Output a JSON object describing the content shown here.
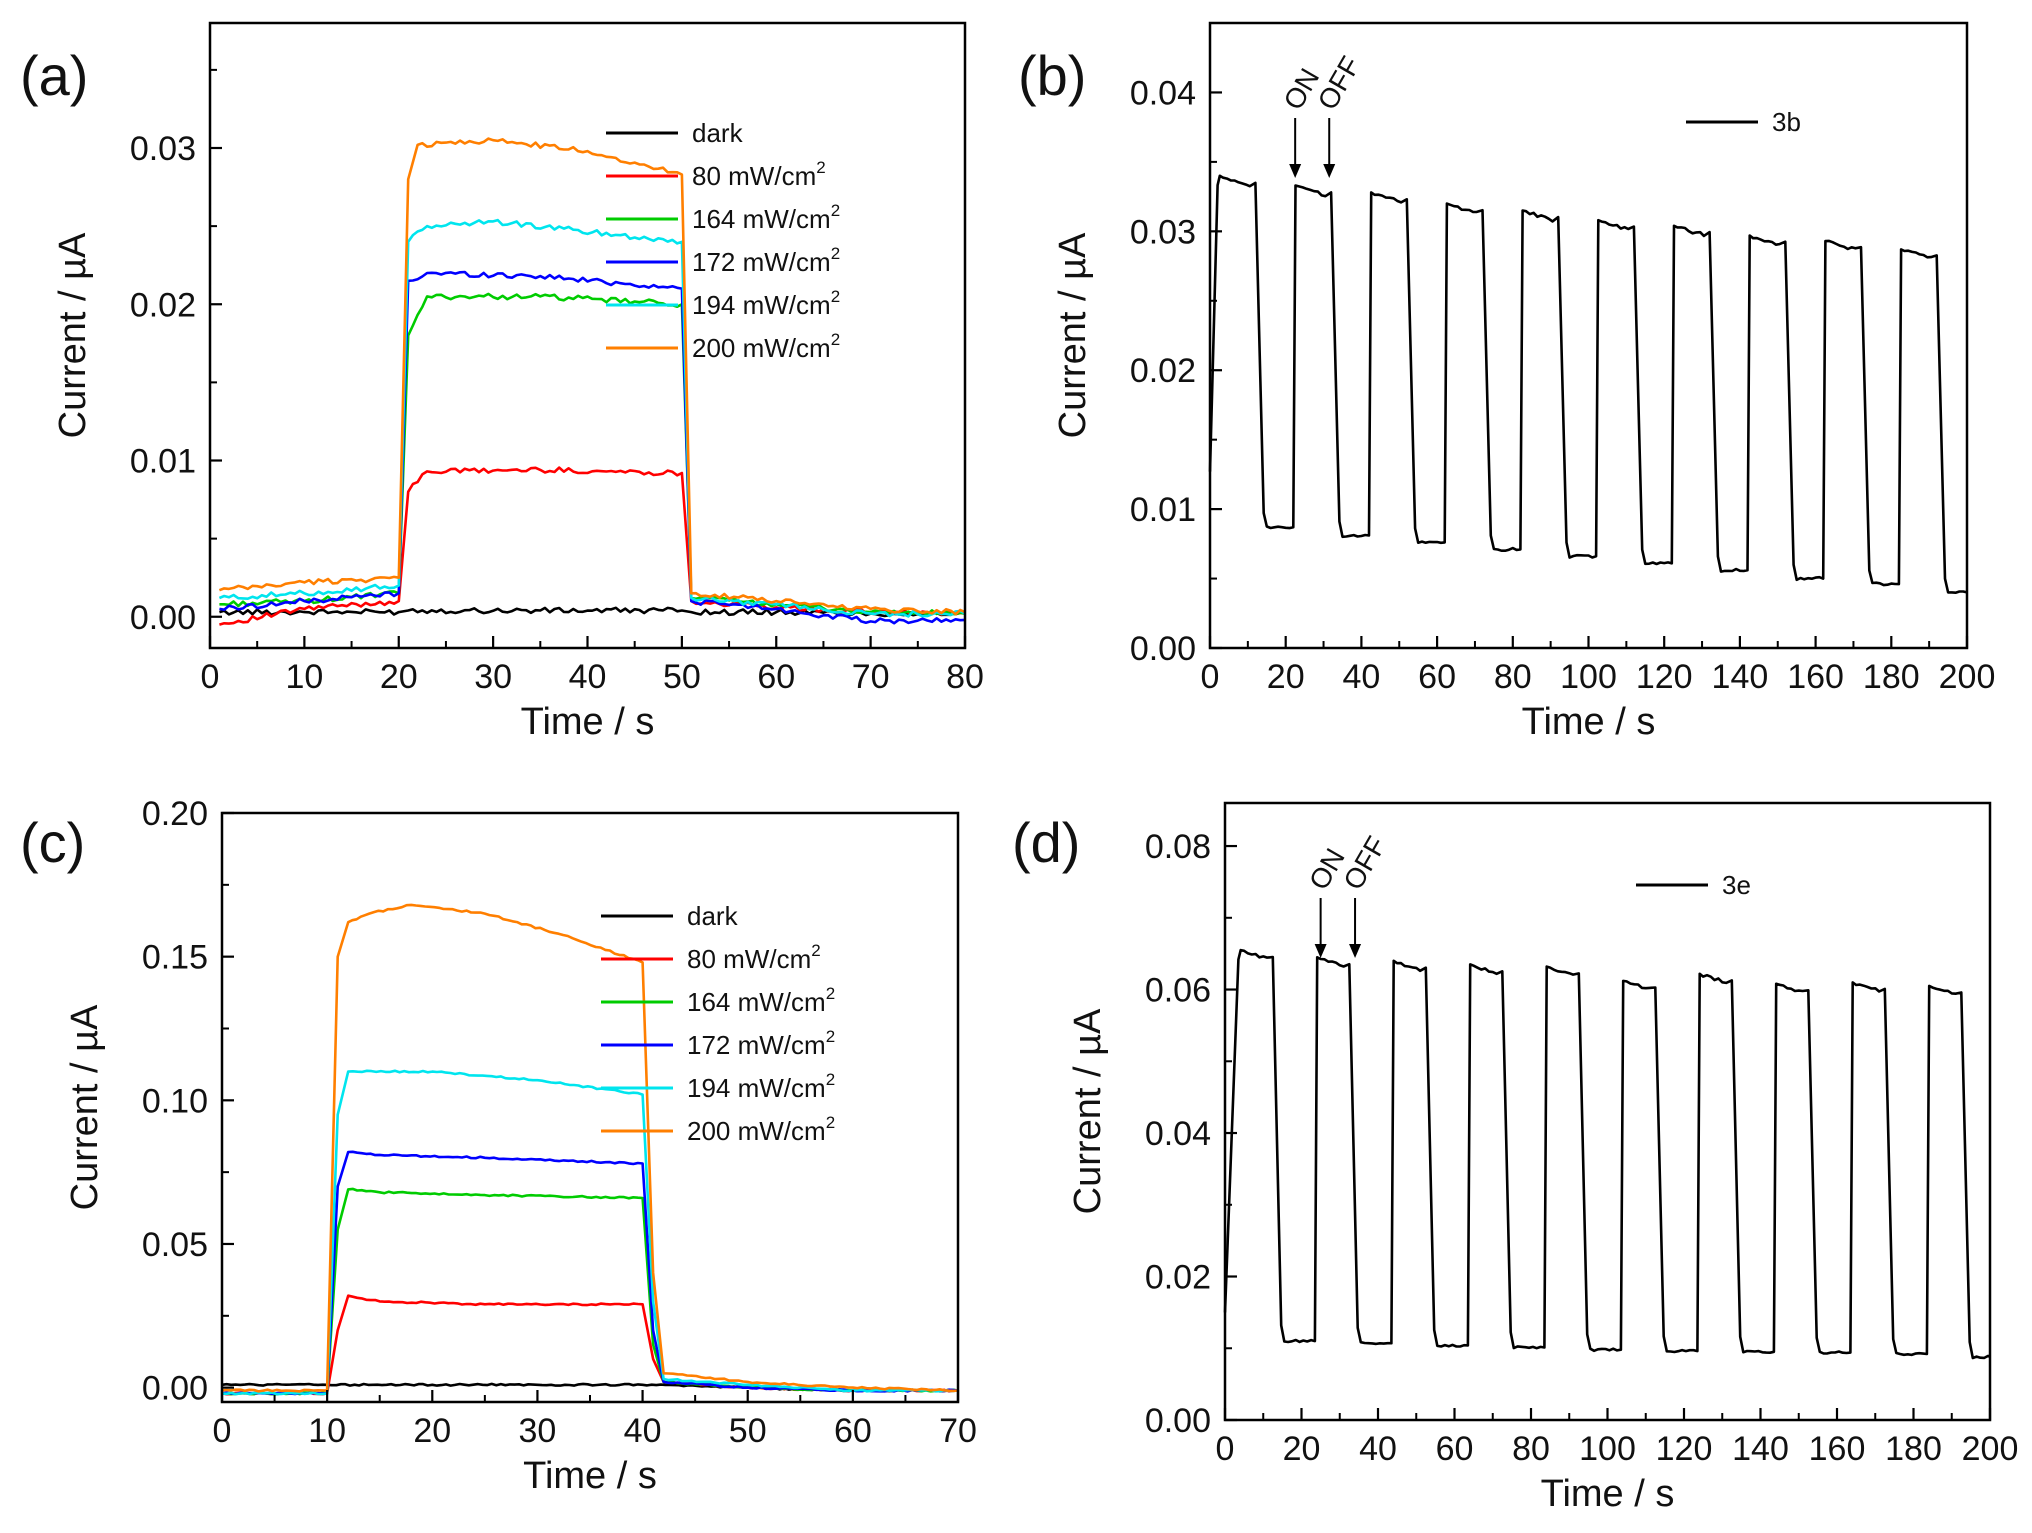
{
  "figure": {
    "panel_labels": [
      "(a)",
      "(b)",
      "(c)",
      "(d)"
    ]
  },
  "chart_data": [
    {
      "id": "a",
      "type": "line",
      "panel_label": "(a)",
      "xlabel": "Time / s",
      "ylabel": "Current / µA",
      "xlim": [
        0,
        80
      ],
      "ylim": [
        -0.002,
        0.038
      ],
      "xticks": [
        0,
        10,
        20,
        30,
        40,
        50,
        60,
        70,
        80
      ],
      "yticks": [
        0.0,
        0.01,
        0.02,
        0.03
      ],
      "ytick_labels": [
        "0.00",
        "0.01",
        "0.02",
        "0.03"
      ],
      "legend_position": "upper-right",
      "series": [
        {
          "name": "dark",
          "color": "#000000",
          "x": [
            1,
            10,
            20,
            21,
            35,
            50,
            51,
            60,
            70,
            80
          ],
          "values": [
            0.0003,
            0.0003,
            0.0003,
            0.0004,
            0.0004,
            0.0004,
            0.0003,
            0.0003,
            0.0002,
            0.0002
          ]
        },
        {
          "name": "80 mW/cm2",
          "color": "#ff0000",
          "x": [
            1,
            10,
            20,
            21,
            23,
            35,
            50,
            51,
            60,
            70,
            80
          ],
          "values": [
            -0.0005,
            0.0005,
            0.001,
            0.008,
            0.0093,
            0.0094,
            0.0092,
            0.001,
            0.0006,
            0.0003,
            0.0002
          ]
        },
        {
          "name": "164 mW/cm2",
          "color": "#00cc00",
          "x": [
            1,
            10,
            20,
            21,
            23,
            35,
            50,
            51,
            60,
            70,
            80
          ],
          "values": [
            0.0008,
            0.001,
            0.0015,
            0.018,
            0.0205,
            0.0205,
            0.02,
            0.0012,
            0.0008,
            0.0003,
            0.0002
          ]
        },
        {
          "name": "172 mW/cm2",
          "color": "#0000ff",
          "x": [
            1,
            10,
            20,
            21,
            23,
            35,
            50,
            51,
            60,
            70,
            80
          ],
          "values": [
            0.0005,
            0.001,
            0.0015,
            0.0215,
            0.022,
            0.0218,
            0.021,
            0.001,
            0.0005,
            -0.0003,
            -0.0002
          ]
        },
        {
          "name": "194 mW/cm2",
          "color": "#00e5ee",
          "x": [
            1,
            10,
            20,
            21,
            23,
            30,
            50,
            51,
            60,
            70,
            80
          ],
          "values": [
            0.0012,
            0.0015,
            0.002,
            0.024,
            0.025,
            0.0253,
            0.024,
            0.0012,
            0.0008,
            0.0002,
            0.0002
          ]
        },
        {
          "name": "200 mW/cm2",
          "color": "#ff7f00",
          "x": [
            1,
            10,
            20,
            21,
            22,
            30,
            40,
            50,
            51,
            60,
            70,
            80
          ],
          "values": [
            0.0017,
            0.0022,
            0.0025,
            0.028,
            0.0302,
            0.0305,
            0.0298,
            0.0283,
            0.0015,
            0.001,
            0.0005,
            0.0003
          ]
        }
      ]
    },
    {
      "id": "b",
      "type": "line",
      "panel_label": "(b)",
      "xlabel": "Time / s",
      "ylabel": "Current / µA",
      "xlim": [
        0,
        200
      ],
      "ylim": [
        0,
        0.045
      ],
      "xticks": [
        0,
        20,
        40,
        60,
        80,
        100,
        120,
        140,
        160,
        180,
        200
      ],
      "yticks": [
        0.0,
        0.01,
        0.02,
        0.03,
        0.04
      ],
      "ytick_labels": [
        "0.00",
        "0.01",
        "0.02",
        "0.03",
        "0.04"
      ],
      "legend_position": "top-right",
      "annotations": {
        "on": "ON",
        "off": "OFF",
        "on_x": 22.5,
        "off_x": 31.5
      },
      "square_wave": {
        "period": 20,
        "on_duration": 10,
        "first_on": 2,
        "cycles": 10,
        "end_x": 200
      },
      "series": [
        {
          "name": "3b",
          "color": "#000000",
          "cycle_on_values": [
            0.034,
            0.0333,
            0.0328,
            0.032,
            0.0315,
            0.0308,
            0.0304,
            0.0297,
            0.0293,
            0.0287
          ],
          "cycle_off_values": [
            0.0087,
            0.0081,
            0.0076,
            0.0071,
            0.0066,
            0.0061,
            0.0056,
            0.005,
            0.0046,
            0.004
          ]
        }
      ]
    },
    {
      "id": "c",
      "type": "line",
      "panel_label": "(c)",
      "xlabel": "Time / s",
      "ylabel": "Current / µA",
      "xlim": [
        0,
        70
      ],
      "ylim": [
        -0.005,
        0.2
      ],
      "xticks": [
        0,
        10,
        20,
        30,
        40,
        50,
        60,
        70
      ],
      "yticks": [
        0.0,
        0.05,
        0.1,
        0.15,
        0.2
      ],
      "ytick_labels": [
        "0.00",
        "0.05",
        "0.10",
        "0.15",
        "0.20"
      ],
      "legend_position": "upper-right",
      "series": [
        {
          "name": "dark",
          "color": "#000000",
          "x": [
            0,
            10,
            20,
            30,
            40,
            50,
            60,
            70
          ],
          "values": [
            0.001,
            0.001,
            0.001,
            0.001,
            0.001,
            0.0,
            -0.001,
            -0.001
          ]
        },
        {
          "name": "80 mW/cm2",
          "color": "#ff0000",
          "x": [
            0,
            10,
            11,
            12,
            15,
            25,
            40,
            41,
            42,
            50,
            60,
            70
          ],
          "values": [
            -0.002,
            -0.002,
            0.02,
            0.032,
            0.03,
            0.029,
            0.029,
            0.01,
            0.002,
            0.0,
            -0.001,
            -0.001
          ]
        },
        {
          "name": "164 mW/cm2",
          "color": "#00cc00",
          "x": [
            0,
            10,
            11,
            12,
            15,
            25,
            40,
            41,
            42,
            50,
            60,
            70
          ],
          "values": [
            -0.002,
            -0.002,
            0.055,
            0.069,
            0.068,
            0.067,
            0.066,
            0.015,
            0.002,
            0.0,
            -0.001,
            -0.001
          ]
        },
        {
          "name": "172 mW/cm2",
          "color": "#0000ff",
          "x": [
            0,
            10,
            11,
            12,
            15,
            25,
            40,
            41,
            42,
            50,
            60,
            70
          ],
          "values": [
            -0.002,
            -0.002,
            0.07,
            0.082,
            0.081,
            0.08,
            0.078,
            0.02,
            0.002,
            0.0,
            -0.001,
            -0.001
          ]
        },
        {
          "name": "194 mW/cm2",
          "color": "#00e5ee",
          "x": [
            0,
            10,
            11,
            12,
            20,
            30,
            40,
            41,
            42,
            50,
            60,
            70
          ],
          "values": [
            -0.002,
            -0.002,
            0.095,
            0.11,
            0.11,
            0.107,
            0.102,
            0.03,
            0.003,
            0.001,
            -0.001,
            -0.001
          ]
        },
        {
          "name": "200 mW/cm2",
          "color": "#ff7f00",
          "x": [
            0,
            10,
            11,
            12,
            14,
            18,
            25,
            32,
            40,
            41,
            42,
            50,
            60,
            70
          ],
          "values": [
            -0.001,
            -0.001,
            0.15,
            0.162,
            0.165,
            0.168,
            0.165,
            0.158,
            0.148,
            0.04,
            0.005,
            0.002,
            0.0,
            -0.001
          ]
        }
      ]
    },
    {
      "id": "d",
      "type": "line",
      "panel_label": "(d)",
      "xlabel": "Time / s",
      "ylabel": "Current / µA",
      "xlim": [
        0,
        200
      ],
      "ylim": [
        0,
        0.086
      ],
      "xticks": [
        0,
        20,
        40,
        60,
        80,
        100,
        120,
        140,
        160,
        180,
        200
      ],
      "yticks": [
        0.0,
        0.02,
        0.04,
        0.06,
        0.08
      ],
      "ytick_labels": [
        "0.00",
        "0.02",
        "0.04",
        "0.06",
        "0.08"
      ],
      "legend_position": "top-right",
      "annotations": {
        "on": "ON",
        "off": "OFF",
        "on_x": 25,
        "off_x": 34
      },
      "square_wave": {
        "period": 20,
        "on_duration": 9,
        "first_on": 3.5,
        "cycles": 10,
        "end_x": 200
      },
      "series": [
        {
          "name": "3e",
          "color": "#000000",
          "cycle_on_values": [
            0.0655,
            0.0645,
            0.064,
            0.0635,
            0.0632,
            0.0612,
            0.0622,
            0.0608,
            0.061,
            0.0605
          ],
          "cycle_off_values": [
            0.011,
            0.0107,
            0.0104,
            0.0101,
            0.0098,
            0.0096,
            0.0095,
            0.0094,
            0.0092,
            0.0088
          ]
        }
      ]
    }
  ]
}
